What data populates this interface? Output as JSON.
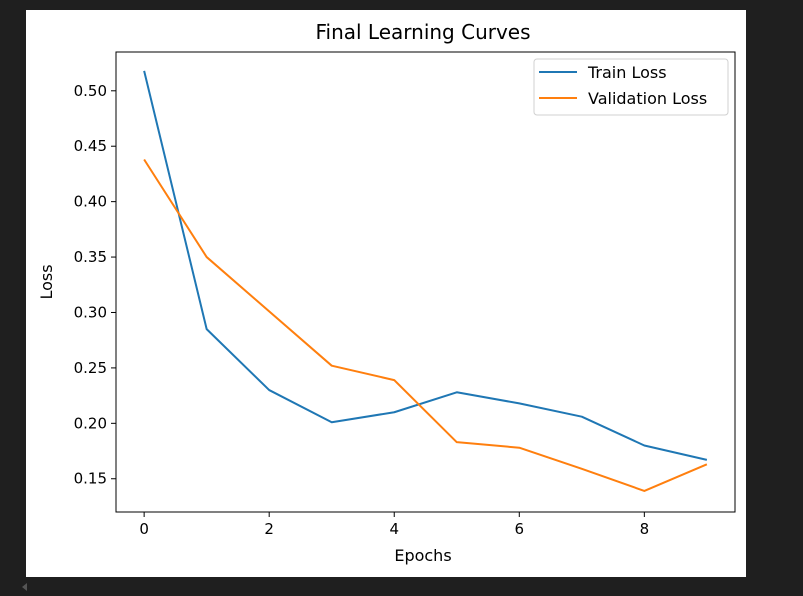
{
  "chart_data": {
    "type": "line",
    "title": "Final Learning Curves",
    "xlabel": "Epochs",
    "ylabel": "Loss",
    "xlim": [
      -0.45,
      9.45
    ],
    "ylim": [
      0.12,
      0.535
    ],
    "x_ticks": [
      0,
      2,
      4,
      6,
      8
    ],
    "x_tick_labels": [
      "0",
      "2",
      "4",
      "6",
      "8"
    ],
    "y_ticks": [
      0.15,
      0.2,
      0.25,
      0.3,
      0.35,
      0.4,
      0.45,
      0.5
    ],
    "y_tick_labels": [
      "0.15",
      "0.20",
      "0.25",
      "0.30",
      "0.35",
      "0.40",
      "0.45",
      "0.50"
    ],
    "grid": false,
    "legend_position": "top-right",
    "x": [
      0,
      1,
      2,
      3,
      4,
      5,
      6,
      7,
      8,
      9
    ],
    "series": [
      {
        "name": "Train Loss",
        "color": "#1f77b4",
        "values": [
          0.518,
          0.285,
          0.23,
          0.201,
          0.21,
          0.228,
          0.218,
          0.206,
          0.18,
          0.167
        ]
      },
      {
        "name": "Validation Loss",
        "color": "#ff7f0e",
        "values": [
          0.438,
          0.35,
          0.301,
          0.252,
          0.239,
          0.183,
          0.178,
          0.159,
          0.139,
          0.163
        ]
      }
    ]
  }
}
